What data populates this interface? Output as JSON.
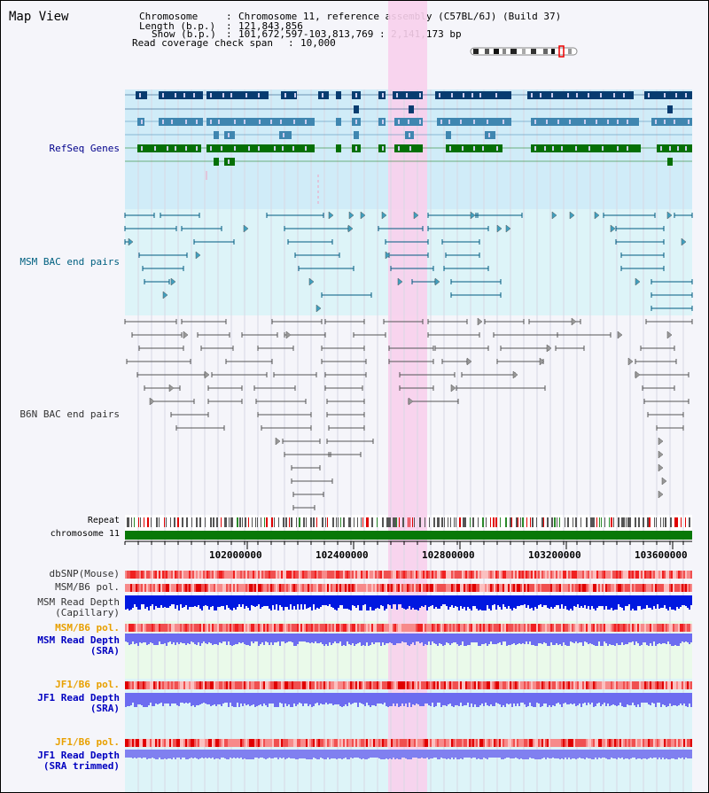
{
  "page": {
    "title": "Map View"
  },
  "info": {
    "chromosome_label": "Chromosome",
    "chromosome_value": "Chromosome 11, reference assembly (C57BL/6J) (Build 37)",
    "length_label": "Length (b.p.)",
    "length_value": "121,843,856",
    "show_label": "Show (b.p.)",
    "show_value": "101,672,597-103,813,769 : 2,141,173 bp",
    "coverage_label": "Read coverage check span",
    "coverage_value": "10,000"
  },
  "tracks": {
    "refseq": "RefSeq Genes",
    "msm_bac": "MSM BAC end pairs",
    "b6n_bac": "B6N BAC end pairs",
    "repeat": "Repeat",
    "chromosome": "chromosome 11",
    "dbsnp": "dbSNP(Mouse)",
    "msm_b6_pol_1": "MSM/B6 pol.",
    "msm_depth_cap_1": "MSM Read Depth",
    "msm_depth_cap_2": "(Capillary)",
    "msm_b6_pol_2": "MSM/B6 pol.",
    "msm_depth_sra_1": "MSM Read Depth",
    "msm_depth_sra_2": "(SRA)",
    "jf1_b6_pol_1": "JF1/B6 pol.",
    "jf1_depth_sra_1": "JF1 Read Depth",
    "jf1_depth_sra_2": "(SRA)",
    "jf1_b6_pol_2": "JF1/B6 pol.",
    "jf1_depth_trim_1": "JF1 Read Depth",
    "jf1_depth_trim_2": "(SRA trimmed)"
  },
  "axis": {
    "ticks": [
      "102000000",
      "102400000",
      "102800000",
      "103200000",
      "103600000"
    ],
    "range": [
      101672597,
      103813769
    ]
  },
  "colors": {
    "highlight": "#f8d0ec",
    "refseq_bg": "#d0ecf8",
    "msm_bg": "#ddf4f8",
    "chromosome": "#087808",
    "gene_dark": "#083c70",
    "gene_mid": "#3f86b0",
    "gene_green": "#057005",
    "snp": "#f07070",
    "depth_blue": "#0018e0",
    "depth_light": "#6c6cf0"
  }
}
